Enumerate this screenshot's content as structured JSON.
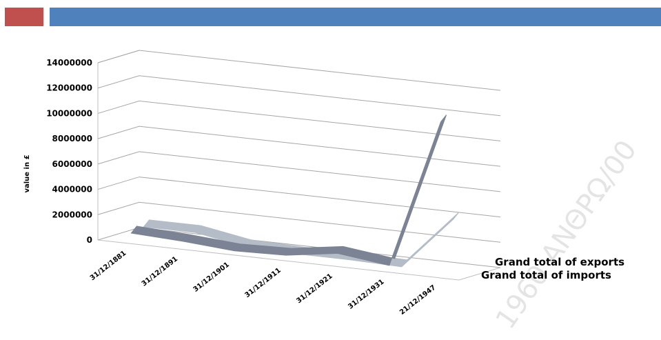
{
  "header": {
    "accent_left": "#c0504d",
    "accent_right": "#4f81bd"
  },
  "watermark": "1960 ΑΝΘΡΩ/00",
  "chart_data": {
    "type": "line",
    "style": "3d",
    "ylabel": "value in £",
    "ylim": [
      0,
      14000000
    ],
    "yticks": [
      "14000000",
      "12000000",
      "10000000",
      "8000000",
      "6000000",
      "4000000",
      "2000000",
      "0"
    ],
    "categories": [
      "31/12/1881",
      "31/12/1891",
      "31/12/1901",
      "31/12/1911",
      "31/12/1921",
      "31/12/1931",
      "21/12/1947"
    ],
    "series": [
      {
        "name": "Grand total of  exports",
        "color": "#b4bcc8",
        "values": [
          1000000,
          1000000,
          300000,
          200000,
          200000,
          100000,
          4300000
        ]
      },
      {
        "name": "Grand total of imports",
        "color": "#7b8394",
        "values": [
          800000,
          600000,
          300000,
          400000,
          1000000,
          500000,
          12300000
        ]
      }
    ],
    "grid": true,
    "legend": "series labels on depth axis"
  }
}
